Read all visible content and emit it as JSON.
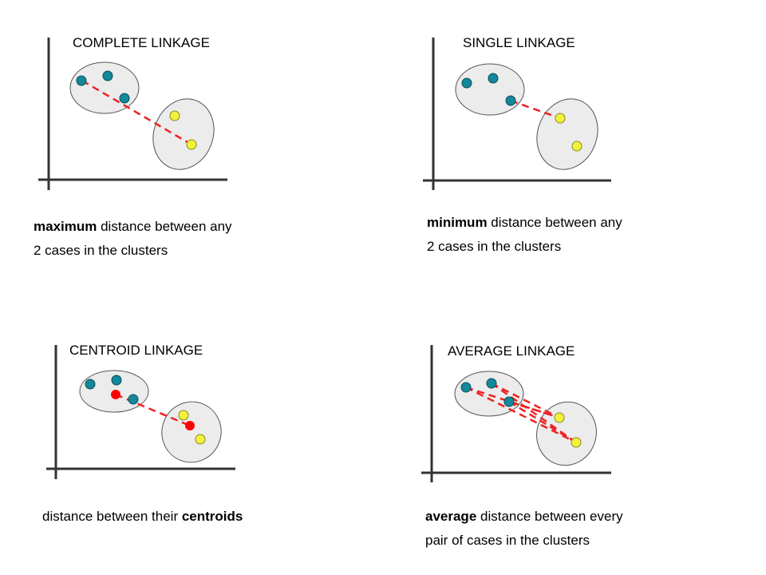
{
  "panels": [
    {
      "title": "COMPLETE LINKAGE",
      "desc": [
        [
          "maximum",
          " distance between any"
        ],
        [
          "",
          "2 cases in the clusters"
        ]
      ]
    },
    {
      "title": "SINGLE LINKAGE",
      "desc": [
        [
          "minimum",
          " distance between any"
        ],
        [
          "",
          "2 cases in the clusters"
        ]
      ]
    },
    {
      "title": "CENTROID LINKAGE",
      "desc": [
        [
          "",
          "distance between their "
        ],
        [
          "centroids",
          ""
        ]
      ]
    },
    {
      "title": "AVERAGE LINKAGE",
      "desc": [
        [
          "average",
          " distance between every"
        ],
        [
          "",
          "pair of cases in the clusters"
        ]
      ]
    }
  ],
  "colors": {
    "cluster_a": "#13889a",
    "cluster_b": "#f2f23c",
    "link": "#ee2222",
    "centroid": "#ff0000",
    "ellipse_fill": "#ececec",
    "axis": "#333333"
  }
}
